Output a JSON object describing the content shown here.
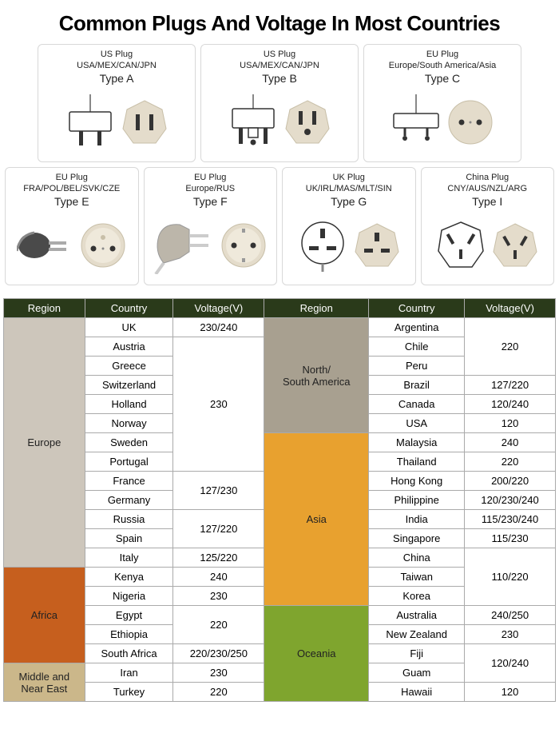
{
  "title": "Common Plugs And Voltage In Most Countries",
  "plugs": [
    {
      "name": "US Plug",
      "regions": "USA/MEX/CAN/JPN",
      "type": "Type A"
    },
    {
      "name": "US Plug",
      "regions": "USA/MEX/CAN/JPN",
      "type": "Type B"
    },
    {
      "name": "EU Plug",
      "regions": "Europe/South America/Asia",
      "type": "Type C"
    },
    {
      "name": "EU Plug",
      "regions": "FRA/POL/BEL/SVK/CZE",
      "type": "Type E"
    },
    {
      "name": "EU Plug",
      "regions": "Europe/RUS",
      "type": "Type F"
    },
    {
      "name": "UK Plug",
      "regions": "UK/IRL/MAS/MLT/SIN",
      "type": "Type G"
    },
    {
      "name": "China Plug",
      "regions": "CNY/AUS/NZL/ARG",
      "type": "Type I"
    }
  ],
  "table": {
    "headers": [
      "Region",
      "Country",
      "Voltage(V)",
      "Region",
      "Country",
      "Voltage(V)"
    ],
    "region_colors": {
      "europe": "#cdc6bb",
      "africa": "#c65f1e",
      "mideast": "#cbb78a",
      "namerica": "#a8a090",
      "asia": "#e8a12f",
      "oceania": "#7fa52e",
      "header": "#2a3a1a"
    },
    "left_regions": [
      {
        "name": "Europe",
        "color": "europe",
        "rows": 13
      },
      {
        "name": "Africa",
        "color": "africa",
        "rows": 5
      },
      {
        "name": "Middle and Near East",
        "color": "mideast",
        "rows": 2
      }
    ],
    "right_regions": [
      {
        "name": "North/South America",
        "color": "namerica",
        "rows": 6
      },
      {
        "name": "Asia",
        "color": "asia",
        "rows": 9
      },
      {
        "name": "Oceania",
        "color": "oceania",
        "rows": 5
      }
    ],
    "left_rows": [
      [
        "UK",
        "230/240"
      ],
      [
        "Austria",
        null
      ],
      [
        "Greece",
        null
      ],
      [
        "Switzerland",
        null
      ],
      [
        "Holland",
        "230"
      ],
      [
        "Norway",
        null
      ],
      [
        "Sweden",
        null
      ],
      [
        "Portugal",
        null
      ],
      [
        "France",
        null
      ],
      [
        "Germany",
        "127/230"
      ],
      [
        "Russia",
        null
      ],
      [
        "Spain",
        "127/220"
      ],
      [
        "Italy",
        "125/220"
      ],
      [
        "Kenya",
        "240"
      ],
      [
        "Nigeria",
        "230"
      ],
      [
        "Egypt",
        null
      ],
      [
        "Ethiopia",
        "220"
      ],
      [
        "South Africa",
        "220/230/250"
      ],
      [
        "Iran",
        "230"
      ],
      [
        "Turkey",
        "220"
      ]
    ],
    "left_voltage_spans": [
      1,
      7,
      2,
      2,
      1,
      1,
      1,
      2,
      1,
      1,
      1
    ],
    "right_rows": [
      [
        "Argentina",
        null
      ],
      [
        "Chile",
        "220"
      ],
      [
        "Peru",
        null
      ],
      [
        "Brazil",
        "127/220"
      ],
      [
        "Canada",
        "120/240"
      ],
      [
        "USA",
        "120"
      ],
      [
        "Malaysia",
        "240"
      ],
      [
        "Thailand",
        "220"
      ],
      [
        "Hong Kong",
        "200/220"
      ],
      [
        "Philippine",
        "120/230/240"
      ],
      [
        "India",
        "115/230/240"
      ],
      [
        "Singapore",
        "115/230"
      ],
      [
        "China",
        null
      ],
      [
        "Taiwan",
        "110/220"
      ],
      [
        "Korea",
        null
      ],
      [
        "Australia",
        "240/250"
      ],
      [
        "New Zealand",
        "230"
      ],
      [
        "Fiji",
        null
      ],
      [
        "Guam",
        "120/240"
      ],
      [
        "Hawaii",
        "120"
      ]
    ],
    "right_voltage_spans": [
      3,
      1,
      1,
      1,
      1,
      1,
      1,
      1,
      1,
      1,
      3,
      1,
      1,
      2,
      1
    ]
  }
}
